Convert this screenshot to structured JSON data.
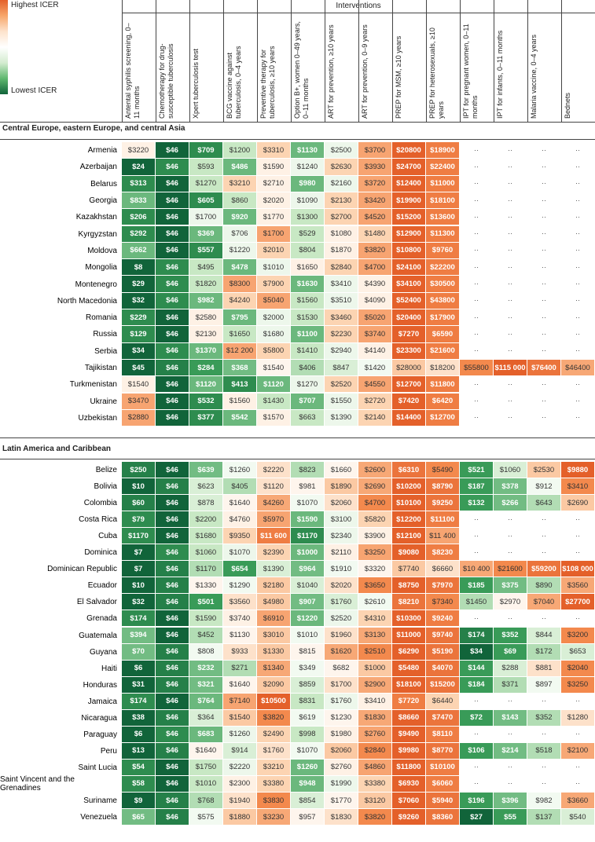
{
  "legend": {
    "high": "Highest ICER",
    "low": "Lowest ICER"
  },
  "header": {
    "title": "Interventions",
    "columns": [
      "Antental syphilis screening, 0–11 months",
      "Chemotherapy for drug-susceptible tuberculosis",
      "Xpert tuberculosis test",
      "BCG vaccine against tuberculosis, 0–4 years",
      "Preventive therapy for tuberculosis, ≥10 years",
      "Option B+, women 0–49 years, 0–11 months",
      "ART for prevention, ≥10 years",
      "ART for prevention, 0–9 years",
      "PREP for MSM, ≥10 years",
      "PREP for heterosexuals, ≥10 years",
      "IPT for pregnant women, 0–11 months",
      "IPT for infants, 0–11 months",
      "Malaria vaccine, 0–4 years",
      "Bednets"
    ]
  },
  "sections": [
    {
      "title": "Central Europe, eastern Europe, and central Asia",
      "rows": [
        {
          "country": "Armenia",
          "cells": [
            "$3220",
            "$46",
            "$709",
            "$1200",
            "$3310",
            "$1130",
            "$2500",
            "$3700",
            "$20800",
            "$18900",
            "··",
            "··",
            "··",
            "··"
          ]
        },
        {
          "country": "Azerbaijan",
          "cells": [
            "$24",
            "$46",
            "$593",
            "$486",
            "$1590",
            "$1240",
            "$2630",
            "$3930",
            "$24700",
            "$22400",
            "··",
            "··",
            "··",
            "··"
          ]
        },
        {
          "country": "Belarus",
          "cells": [
            "$313",
            "$46",
            "$1270",
            "$3210",
            "$2710",
            "$980",
            "$2160",
            "$3720",
            "$12400",
            "$11000",
            "··",
            "··",
            "··",
            "··"
          ]
        },
        {
          "country": "Georgia",
          "cells": [
            "$833",
            "$46",
            "$605",
            "$860",
            "$2020",
            "$1090",
            "$2130",
            "$3420",
            "$19900",
            "$18100",
            "··",
            "··",
            "··",
            "··"
          ]
        },
        {
          "country": "Kazakhstan",
          "cells": [
            "$206",
            "$46",
            "$1700",
            "$920",
            "$1770",
            "$1300",
            "$2700",
            "$4520",
            "$15200",
            "$13600",
            "··",
            "··",
            "··",
            "··"
          ]
        },
        {
          "country": "Kyrgyzstan",
          "cells": [
            "$292",
            "$46",
            "$369",
            "$706",
            "$1700",
            "$529",
            "$1080",
            "$1480",
            "$12900",
            "$11300",
            "··",
            "··",
            "··",
            "··"
          ]
        },
        {
          "country": "Moldova",
          "cells": [
            "$662",
            "$46",
            "$557",
            "$1220",
            "$2010",
            "$804",
            "$1870",
            "$3820",
            "$10800",
            "$9760",
            "··",
            "··",
            "··",
            "··"
          ]
        },
        {
          "country": "Mongolia",
          "cells": [
            "$8",
            "$46",
            "$495",
            "$478",
            "$1010",
            "$1650",
            "$2840",
            "$4700",
            "$24100",
            "$22200",
            "··",
            "··",
            "··",
            "··"
          ]
        },
        {
          "country": "Montenegro",
          "cells": [
            "$29",
            "$46",
            "$1820",
            "$8300",
            "$7900",
            "$1630",
            "$3410",
            "$4390",
            "$34100",
            "$30500",
            "··",
            "··",
            "··",
            "··"
          ]
        },
        {
          "country": "North Macedonia",
          "cells": [
            "$32",
            "$46",
            "$982",
            "$4240",
            "$5040",
            "$1560",
            "$3510",
            "$4090",
            "$52400",
            "$43800",
            "··",
            "··",
            "··",
            "··"
          ]
        },
        {
          "country": "Romania",
          "cells": [
            "$229",
            "$46",
            "$2580",
            "$795",
            "$2000",
            "$1530",
            "$3460",
            "$5020",
            "$20400",
            "$17900",
            "··",
            "··",
            "··",
            "··"
          ]
        },
        {
          "country": "Russia",
          "cells": [
            "$129",
            "$46",
            "$2130",
            "$1650",
            "$1680",
            "$1100",
            "$2230",
            "$3740",
            "$7270",
            "$6590",
            "··",
            "··",
            "··",
            "··"
          ]
        },
        {
          "country": "Serbia",
          "cells": [
            "$34",
            "$46",
            "$1370",
            "$12 200",
            "$5800",
            "$1410",
            "$2940",
            "$4140",
            "$23300",
            "$21600",
            "··",
            "··",
            "··",
            "··"
          ]
        },
        {
          "country": "Tajikistan",
          "cells": [
            "$45",
            "$46",
            "$284",
            "$368",
            "$1540",
            "$406",
            "$847",
            "$1420",
            "$28000",
            "$18200",
            "$55800",
            "$115 000",
            "$76400",
            "$46400"
          ]
        },
        {
          "country": "Turkmenistan",
          "cells": [
            "$1540",
            "$46",
            "$1120",
            "$413",
            "$1120",
            "$1270",
            "$2520",
            "$4550",
            "$12700",
            "$11800",
            "··",
            "··",
            "··",
            "··"
          ]
        },
        {
          "country": "Ukraine",
          "cells": [
            "$3470",
            "$46",
            "$532",
            "$1560",
            "$1430",
            "$707",
            "$1550",
            "$2720",
            "$7420",
            "$6420",
            "··",
            "··",
            "··",
            "··"
          ]
        },
        {
          "country": "Uzbekistan",
          "cells": [
            "$2880",
            "$46",
            "$377",
            "$542",
            "$1570",
            "$663",
            "$1390",
            "$2140",
            "$14400",
            "$12700",
            "··",
            "··",
            "··",
            "··"
          ]
        }
      ]
    },
    {
      "title": "Latin America and Caribbean",
      "rows": [
        {
          "country": "Belize",
          "cells": [
            "$250",
            "$46",
            "$639",
            "$1260",
            "$2220",
            "$823",
            "$1660",
            "$2600",
            "$6310",
            "$5490",
            "$521",
            "$1060",
            "$2530",
            "$9880"
          ]
        },
        {
          "country": "Bolivia",
          "cells": [
            "$10",
            "$46",
            "$623",
            "$405",
            "$1120",
            "$981",
            "$1890",
            "$2690",
            "$10200",
            "$8790",
            "$187",
            "$378",
            "$912",
            "$3410"
          ]
        },
        {
          "country": "Colombia",
          "cells": [
            "$60",
            "$46",
            "$878",
            "$1640",
            "$4260",
            "$1070",
            "$2060",
            "$4700",
            "$10100",
            "$9250",
            "$132",
            "$266",
            "$643",
            "$2690"
          ]
        },
        {
          "country": "Costa Rica",
          "cells": [
            "$79",
            "$46",
            "$2200",
            "$4760",
            "$5970",
            "$1590",
            "$3100",
            "$5820",
            "$12200",
            "$11100",
            "··",
            "··",
            "··",
            "··"
          ]
        },
        {
          "country": "Cuba",
          "cells": [
            "$1170",
            "$46",
            "$1680",
            "$9350",
            "$11 600",
            "$1170",
            "$2340",
            "$3900",
            "$12100",
            "$11 400",
            "··",
            "··",
            "··",
            "··"
          ]
        },
        {
          "country": "Dominica",
          "cells": [
            "$7",
            "$46",
            "$1060",
            "$1070",
            "$2390",
            "$1000",
            "$2110",
            "$3250",
            "$9080",
            "$8230",
            "··",
            "··",
            "··",
            "··"
          ]
        },
        {
          "country": "Dominican Republic",
          "cells": [
            "$7",
            "$46",
            "$1170",
            "$654",
            "$1390",
            "$964",
            "$1910",
            "$3320",
            "$7740",
            "$6660",
            "$10 400",
            "$21600",
            "$59200",
            "$108 000"
          ]
        },
        {
          "country": "Ecuador",
          "cells": [
            "$10",
            "$46",
            "$1330",
            "$1290",
            "$2180",
            "$1040",
            "$2020",
            "$3650",
            "$8750",
            "$7970",
            "$185",
            "$375",
            "$890",
            "$3560"
          ]
        },
        {
          "country": "El Salvador",
          "cells": [
            "$32",
            "$46",
            "$501",
            "$3560",
            "$4980",
            "$907",
            "$1760",
            "$2610",
            "$8210",
            "$7340",
            "$1450",
            "$2970",
            "$7040",
            "$27700"
          ]
        },
        {
          "country": "Grenada",
          "cells": [
            "$174",
            "$46",
            "$1590",
            "$3740",
            "$6910",
            "$1220",
            "$2520",
            "$4310",
            "$10300",
            "$9240",
            "··",
            "··",
            "··",
            "··"
          ]
        },
        {
          "country": "Guatemala",
          "cells": [
            "$394",
            "$46",
            "$452",
            "$1130",
            "$3010",
            "$1010",
            "$1960",
            "$3130",
            "$11000",
            "$9740",
            "$174",
            "$352",
            "$844",
            "$3200"
          ]
        },
        {
          "country": "Guyana",
          "cells": [
            "$70",
            "$46",
            "$808",
            "$933",
            "$1330",
            "$815",
            "$1620",
            "$2510",
            "$6290",
            "$5190",
            "$34",
            "$69",
            "$172",
            "$653"
          ]
        },
        {
          "country": "Haiti",
          "cells": [
            "$6",
            "$46",
            "$232",
            "$271",
            "$1340",
            "$349",
            "$682",
            "$1000",
            "$5480",
            "$4070",
            "$144",
            "$288",
            "$881",
            "$2040"
          ]
        },
        {
          "country": "Honduras",
          "cells": [
            "$31",
            "$46",
            "$321",
            "$1640",
            "$2090",
            "$859",
            "$1700",
            "$2900",
            "$18100",
            "$15200",
            "$184",
            "$371",
            "$897",
            "$3250"
          ]
        },
        {
          "country": "Jamaica",
          "cells": [
            "$174",
            "$46",
            "$764",
            "$7140",
            "$10500",
            "$831",
            "$1760",
            "$3410",
            "$7720",
            "$6440",
            "··",
            "··",
            "··",
            "··"
          ]
        },
        {
          "country": "Nicaragua",
          "cells": [
            "$38",
            "$46",
            "$364",
            "$1540",
            "$3820",
            "$619",
            "$1230",
            "$1830",
            "$8660",
            "$7470",
            "$72",
            "$143",
            "$352",
            "$1280"
          ]
        },
        {
          "country": "Paraguay",
          "cells": [
            "$6",
            "$46",
            "$683",
            "$1260",
            "$2490",
            "$998",
            "$1980",
            "$2760",
            "$9490",
            "$8110",
            "··",
            "··",
            "··",
            "··"
          ]
        },
        {
          "country": "Peru",
          "cells": [
            "$13",
            "$46",
            "$1640",
            "$914",
            "$1760",
            "$1070",
            "$2060",
            "$2840",
            "$9980",
            "$8770",
            "$106",
            "$214",
            "$518",
            "$2100"
          ]
        },
        {
          "country": "Saint Lucia",
          "cells": [
            "$54",
            "$46",
            "$1750",
            "$2220",
            "$3210",
            "$1260",
            "$2760",
            "$4860",
            "$11800",
            "$10100",
            "··",
            "··",
            "··",
            "··"
          ]
        },
        {
          "country": "Saint Vincent and the Grenadines",
          "cells": [
            "$58",
            "$46",
            "$1010",
            "$2300",
            "$3380",
            "$948",
            "$1990",
            "$3380",
            "$6930",
            "$6060",
            "··",
            "··",
            "··",
            "··"
          ]
        },
        {
          "country": "Suriname",
          "cells": [
            "$9",
            "$46",
            "$768",
            "$1940",
            "$3830",
            "$854",
            "$1770",
            "$3120",
            "$7060",
            "$5940",
            "$196",
            "$396",
            "$982",
            "$3660"
          ]
        },
        {
          "country": "Venezuela",
          "cells": [
            "$65",
            "$46",
            "$575",
            "$1880",
            "$3230",
            "$957",
            "$1830",
            "$3820",
            "$9260",
            "$8360",
            "$27",
            "$55",
            "$137",
            "$540"
          ]
        }
      ]
    }
  ]
}
